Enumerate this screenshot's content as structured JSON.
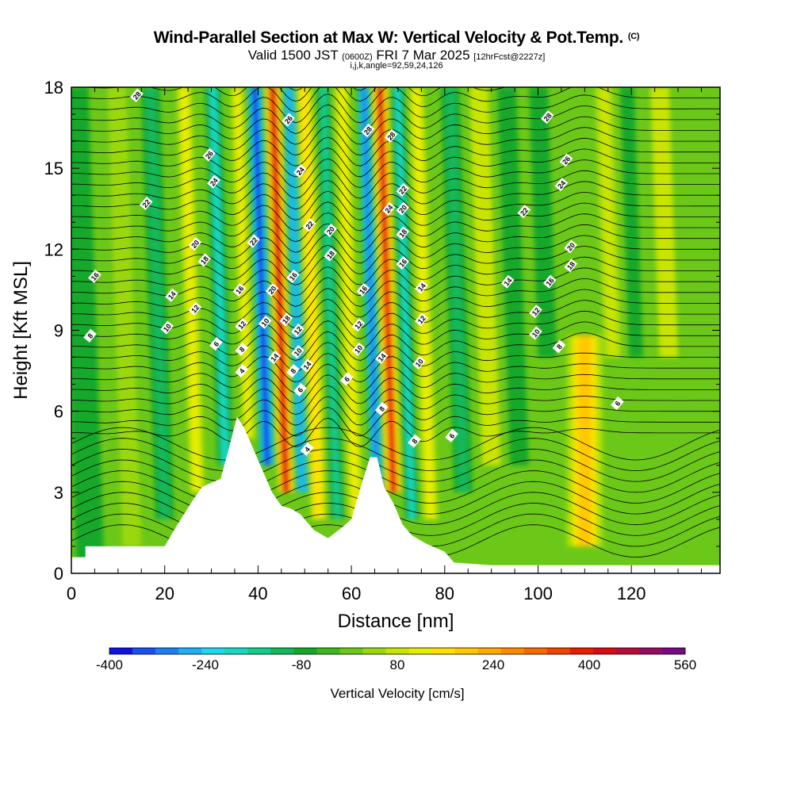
{
  "title": {
    "main": "Wind-Parallel Section at Max W: Vertical Velocity & Pot.Temp.",
    "copyright": "(C)",
    "valid_prefix": "Valid 1500 JST",
    "valid_utc": "(0600Z)",
    "valid_date": "FRI 7 Mar 2025",
    "forecast": "[12hrFcst@2227z]",
    "indices": "i,j,k,angle=92,59,24,126"
  },
  "chart_data": {
    "type": "heatmap",
    "xlabel": "Distance [nm]",
    "ylabel": "Height [Kft MSL]",
    "xlim": [
      0,
      139
    ],
    "ylim": [
      0,
      18
    ],
    "x_ticks": [
      0,
      20,
      40,
      60,
      80,
      100,
      120
    ],
    "y_ticks": [
      0,
      3,
      6,
      9,
      12,
      15,
      18
    ],
    "colorbar": {
      "label": "Vertical Velocity [cm/s]",
      "min": -400,
      "max": 560,
      "step": 40,
      "tick_labels": [
        -400,
        -240,
        -80,
        80,
        240,
        400,
        560
      ],
      "colors": [
        "#1010e8",
        "#1a50f0",
        "#1f7ff5",
        "#20aef5",
        "#20d8ee",
        "#18d8c0",
        "#14cc8c",
        "#12b85a",
        "#14a82a",
        "#3cb81e",
        "#6cc818",
        "#9ad80c",
        "#c8e402",
        "#e6ec00",
        "#ffe000",
        "#ffc800",
        "#ffaa00",
        "#ff8a00",
        "#f86800",
        "#f04400",
        "#e81c00",
        "#d80a14",
        "#b80c3a",
        "#980c60",
        "#7a0a84"
      ]
    },
    "terrain_profile": {
      "distance_nm": [
        0,
        3,
        3,
        20,
        22,
        26,
        28,
        32,
        34,
        35.5,
        37,
        39,
        41,
        43,
        45,
        47,
        49,
        52,
        55,
        58,
        60,
        62,
        64,
        65.5,
        67,
        69,
        71,
        73,
        76,
        80,
        82,
        90,
        139
      ],
      "height_kft": [
        0.6,
        0.6,
        1.0,
        1.0,
        1.6,
        2.7,
        3.2,
        3.5,
        4.8,
        5.8,
        5.4,
        4.6,
        3.8,
        3.0,
        2.5,
        2.4,
        2.2,
        1.6,
        1.3,
        1.7,
        2.0,
        3.2,
        4.3,
        4.3,
        3.2,
        2.6,
        1.8,
        1.4,
        1.1,
        0.8,
        0.4,
        0.3,
        0.3
      ]
    },
    "vertical_velocity_features": [
      {
        "x_nm": 4,
        "width_nm": 6,
        "z_bottom_kft": 0.5,
        "z_top_kft": 18,
        "w_cms": -60
      },
      {
        "x_nm": 13,
        "width_nm": 4,
        "z_bottom_kft": 1,
        "z_top_kft": 18,
        "w_cms": 60
      },
      {
        "x_nm": 20,
        "width_nm": 4,
        "z_bottom_kft": 2,
        "z_top_kft": 18,
        "w_cms": -100
      },
      {
        "x_nm": 27,
        "width_nm": 3.5,
        "z_bottom_kft": 3,
        "z_top_kft": 18,
        "w_cms": 120
      },
      {
        "x_nm": 33,
        "width_nm": 3.5,
        "z_bottom_kft": 4,
        "z_top_kft": 18,
        "w_cms": -180
      },
      {
        "x_nm": 38,
        "width_nm": 3,
        "z_bottom_kft": 5,
        "z_top_kft": 18,
        "w_cms": 150
      },
      {
        "x_nm": 42,
        "width_nm": 3.5,
        "z_bottom_kft": 4,
        "z_top_kft": 18,
        "w_cms": -380
      },
      {
        "x_nm": 46,
        "width_nm": 3.5,
        "z_bottom_kft": 3,
        "z_top_kft": 18,
        "w_cms": 460
      },
      {
        "x_nm": 49.5,
        "width_nm": 3,
        "z_bottom_kft": 3,
        "z_top_kft": 18,
        "w_cms": -260
      },
      {
        "x_nm": 53,
        "width_nm": 3.5,
        "z_bottom_kft": 2,
        "z_top_kft": 18,
        "w_cms": 180
      },
      {
        "x_nm": 57,
        "width_nm": 3,
        "z_bottom_kft": 2,
        "z_top_kft": 18,
        "w_cms": -160
      },
      {
        "x_nm": 61,
        "width_nm": 3.5,
        "z_bottom_kft": 2,
        "z_top_kft": 18,
        "w_cms": 140
      },
      {
        "x_nm": 65.5,
        "width_nm": 3,
        "z_bottom_kft": 3,
        "z_top_kft": 18,
        "w_cms": -320
      },
      {
        "x_nm": 69,
        "width_nm": 3.5,
        "z_bottom_kft": 3,
        "z_top_kft": 18,
        "w_cms": 440
      },
      {
        "x_nm": 73,
        "width_nm": 3,
        "z_bottom_kft": 2,
        "z_top_kft": 18,
        "w_cms": -180
      },
      {
        "x_nm": 77,
        "width_nm": 3.5,
        "z_bottom_kft": 2,
        "z_top_kft": 18,
        "w_cms": 140
      },
      {
        "x_nm": 84,
        "width_nm": 4,
        "z_bottom_kft": 3,
        "z_top_kft": 18,
        "w_cms": -100
      },
      {
        "x_nm": 90,
        "width_nm": 4,
        "z_bottom_kft": 4,
        "z_top_kft": 18,
        "w_cms": 80
      },
      {
        "x_nm": 96,
        "width_nm": 4,
        "z_bottom_kft": 4,
        "z_top_kft": 18,
        "w_cms": -80
      },
      {
        "x_nm": 102,
        "width_nm": 4,
        "z_bottom_kft": 8,
        "z_top_kft": 18,
        "w_cms": -60
      },
      {
        "x_nm": 110,
        "width_nm": 8,
        "z_bottom_kft": 1,
        "z_top_kft": 8.8,
        "w_cms": 220
      },
      {
        "x_nm": 116,
        "width_nm": 4,
        "z_bottom_kft": 8,
        "z_top_kft": 18,
        "w_cms": 100
      },
      {
        "x_nm": 121,
        "width_nm": 3,
        "z_bottom_kft": 8,
        "z_top_kft": 18,
        "w_cms": -80
      },
      {
        "x_nm": 128,
        "width_nm": 4,
        "z_bottom_kft": 8,
        "z_top_kft": 18,
        "w_cms": 80
      }
    ],
    "contour_labels": [
      {
        "x": 14,
        "y": 17.7,
        "text": "28"
      },
      {
        "x": 29.5,
        "y": 15.5,
        "text": "26"
      },
      {
        "x": 30.5,
        "y": 14.5,
        "text": "24"
      },
      {
        "x": 16,
        "y": 13.7,
        "text": "22"
      },
      {
        "x": 26.5,
        "y": 12.2,
        "text": "20"
      },
      {
        "x": 28.5,
        "y": 11.6,
        "text": "18"
      },
      {
        "x": 5,
        "y": 11.0,
        "text": "16"
      },
      {
        "x": 21.5,
        "y": 10.3,
        "text": "14"
      },
      {
        "x": 26.5,
        "y": 9.8,
        "text": "12"
      },
      {
        "x": 20.5,
        "y": 9.1,
        "text": "10"
      },
      {
        "x": 4,
        "y": 8.8,
        "text": "8"
      },
      {
        "x": 31,
        "y": 8.5,
        "text": "6"
      },
      {
        "x": 36,
        "y": 10.5,
        "text": "16"
      },
      {
        "x": 36.5,
        "y": 9.2,
        "text": "12"
      },
      {
        "x": 36.5,
        "y": 8.3,
        "text": "8"
      },
      {
        "x": 36.5,
        "y": 7.5,
        "text": "4"
      },
      {
        "x": 39,
        "y": 12.3,
        "text": "22"
      },
      {
        "x": 43,
        "y": 10.5,
        "text": "20"
      },
      {
        "x": 41.5,
        "y": 9.3,
        "text": "10"
      },
      {
        "x": 43.5,
        "y": 8.0,
        "text": "14"
      },
      {
        "x": 46.5,
        "y": 16.8,
        "text": "26"
      },
      {
        "x": 49,
        "y": 14.9,
        "text": "24"
      },
      {
        "x": 47.5,
        "y": 11.0,
        "text": "16"
      },
      {
        "x": 46,
        "y": 9.4,
        "text": "18"
      },
      {
        "x": 48.5,
        "y": 9.0,
        "text": "12"
      },
      {
        "x": 48.5,
        "y": 8.2,
        "text": "10"
      },
      {
        "x": 47.5,
        "y": 7.5,
        "text": "8"
      },
      {
        "x": 49,
        "y": 6.8,
        "text": "6"
      },
      {
        "x": 50.5,
        "y": 7.7,
        "text": "14"
      },
      {
        "x": 50.5,
        "y": 4.6,
        "text": "4"
      },
      {
        "x": 51,
        "y": 12.9,
        "text": "22"
      },
      {
        "x": 55.5,
        "y": 12.7,
        "text": "20"
      },
      {
        "x": 55.5,
        "y": 11.8,
        "text": "18"
      },
      {
        "x": 62.5,
        "y": 10.5,
        "text": "16"
      },
      {
        "x": 61.5,
        "y": 9.2,
        "text": "12"
      },
      {
        "x": 61.5,
        "y": 8.3,
        "text": "10"
      },
      {
        "x": 59,
        "y": 7.2,
        "text": "6"
      },
      {
        "x": 63.5,
        "y": 16.4,
        "text": "28"
      },
      {
        "x": 68.5,
        "y": 16.2,
        "text": "28"
      },
      {
        "x": 71,
        "y": 14.2,
        "text": "22"
      },
      {
        "x": 68,
        "y": 13.5,
        "text": "24"
      },
      {
        "x": 71,
        "y": 13.5,
        "text": "20"
      },
      {
        "x": 71,
        "y": 12.6,
        "text": "18"
      },
      {
        "x": 71,
        "y": 11.5,
        "text": "16"
      },
      {
        "x": 75,
        "y": 10.6,
        "text": "14"
      },
      {
        "x": 75,
        "y": 9.4,
        "text": "12"
      },
      {
        "x": 66.5,
        "y": 8.0,
        "text": "14"
      },
      {
        "x": 74.5,
        "y": 7.8,
        "text": "10"
      },
      {
        "x": 66.5,
        "y": 6.1,
        "text": "8"
      },
      {
        "x": 73.5,
        "y": 4.9,
        "text": "8"
      },
      {
        "x": 81.5,
        "y": 5.1,
        "text": "6"
      },
      {
        "x": 102,
        "y": 16.9,
        "text": "28"
      },
      {
        "x": 106,
        "y": 15.3,
        "text": "26"
      },
      {
        "x": 105,
        "y": 14.4,
        "text": "24"
      },
      {
        "x": 97,
        "y": 13.4,
        "text": "22"
      },
      {
        "x": 107,
        "y": 12.1,
        "text": "20"
      },
      {
        "x": 107,
        "y": 11.4,
        "text": "18"
      },
      {
        "x": 102.5,
        "y": 10.8,
        "text": "16"
      },
      {
        "x": 93.5,
        "y": 10.8,
        "text": "14"
      },
      {
        "x": 99.5,
        "y": 9.7,
        "text": "12"
      },
      {
        "x": 99.5,
        "y": 8.9,
        "text": "10"
      },
      {
        "x": 104.5,
        "y": 8.4,
        "text": "8"
      },
      {
        "x": 117,
        "y": 6.3,
        "text": "6"
      }
    ]
  }
}
